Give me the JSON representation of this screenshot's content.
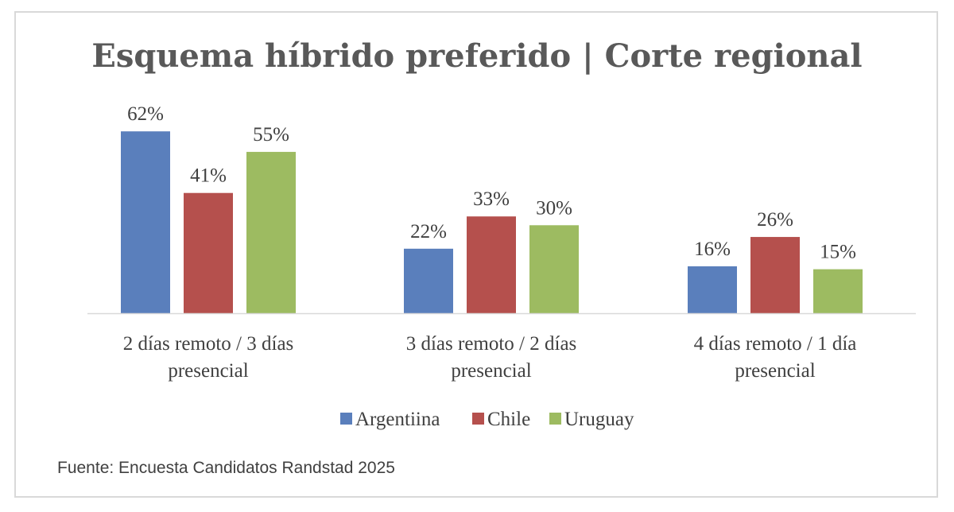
{
  "chart_data": {
    "type": "bar",
    "title": "Esquema híbrido preferido | Corte regional",
    "categories": [
      [
        "2 días remoto / 3 días",
        "presencial"
      ],
      [
        "3 días remoto / 2 días",
        "presencial"
      ],
      [
        "4 días remoto / 1 día",
        "presencial"
      ]
    ],
    "series": [
      {
        "name": "Argentiina",
        "color": "#5a7fbc",
        "values": [
          62,
          22,
          16
        ]
      },
      {
        "name": "Chile",
        "color": "#b5504d",
        "values": [
          41,
          33,
          26
        ]
      },
      {
        "name": "Uruguay",
        "color": "#9dbb61",
        "values": [
          55,
          30,
          15
        ]
      }
    ],
    "value_format": "%",
    "data_labels": true,
    "grid": false,
    "legend": "bottom",
    "source": "Fuente: Encuesta Candidatos Randstad 2025"
  }
}
